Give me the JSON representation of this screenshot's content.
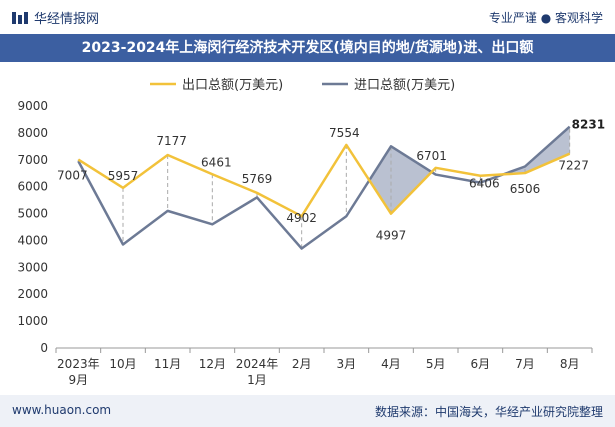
{
  "header": {
    "brand": "华经情报网",
    "tagline": "专业严谨 ● 客观科学"
  },
  "footer": {
    "website": "www.huaon.com",
    "source": "数据来源：中国海关，华经产业研究院整理"
  },
  "colors": {
    "export": "#f2c23a",
    "import": "#6d7a95",
    "title_bg": "#3c5fa1",
    "fill": "#a9b1c5"
  },
  "chart_data": {
    "type": "line",
    "title": "2023-2024年上海闵行经济技术开发区(境内目的地/货源地)进、出口额",
    "categories": [
      "2023年\n9月",
      "10月",
      "11月",
      "12月",
      "2024年\n1月",
      "2月",
      "3月",
      "4月",
      "5月",
      "6月",
      "7月",
      "8月"
    ],
    "series": [
      {
        "name": "出口总额(万美元)",
        "values": [
          7007,
          5957,
          7177,
          6461,
          5769,
          4902,
          7554,
          4997,
          6701,
          6406,
          6506,
          7227
        ]
      },
      {
        "name": "进口总额(万美元)",
        "values": [
          6950,
          3850,
          5100,
          4600,
          5600,
          3700,
          4900,
          7500,
          6450,
          6150,
          6750,
          8231
        ]
      }
    ],
    "data_labels": [
      "7007",
      "5957",
      "7177",
      "6461",
      "5769",
      "4902",
      "7554",
      "4997",
      "6701",
      "6406",
      "6506",
      "7227"
    ],
    "highlight_label": "8231",
    "ylim": [
      0,
      9000
    ],
    "yticks": [
      0,
      1000,
      2000,
      3000,
      4000,
      5000,
      6000,
      7000,
      8000,
      9000
    ],
    "legend_position": "top"
  }
}
